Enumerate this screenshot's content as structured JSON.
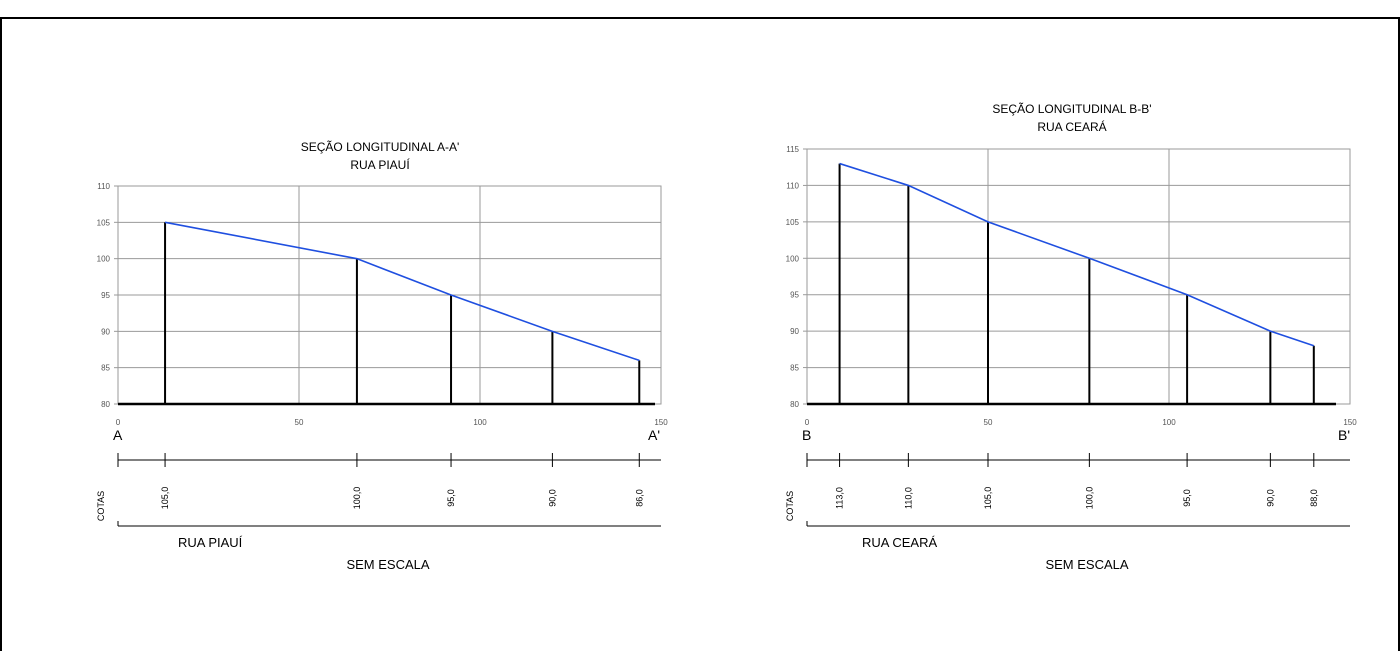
{
  "chart_data": [
    {
      "type": "line",
      "title": "SEÇÃO LONGITUDINAL  A-A'",
      "subtitle": "RUA PIAUÍ",
      "xlim": [
        0,
        150
      ],
      "ylim": [
        80,
        110
      ],
      "x_ticks": [
        "0",
        "50",
        "100",
        "150"
      ],
      "y_ticks": [
        "80",
        "85",
        "90",
        "95",
        "100",
        "105",
        "110"
      ],
      "grid": true,
      "start_label": "A",
      "end_label": "A'",
      "x": [
        13,
        66,
        92,
        120,
        144
      ],
      "values": [
        105,
        100,
        95,
        90,
        86
      ],
      "cotas_label": "COTAS",
      "cotas": [
        "105,0",
        "100,0",
        "95,0",
        "90,0",
        "86,0"
      ],
      "street_label": "RUA PIAUÍ",
      "scale_label": "SEM ESCALA",
      "line_color": "#1f4fe0"
    },
    {
      "type": "line",
      "title": "SEÇÃO LONGITUDINAL  B-B'",
      "subtitle": "RUA CEARÁ",
      "xlim": [
        0,
        150
      ],
      "ylim": [
        80,
        115
      ],
      "x_ticks": [
        "0",
        "50",
        "100",
        "150"
      ],
      "y_ticks": [
        "80",
        "85",
        "90",
        "95",
        "100",
        "105",
        "110",
        "115"
      ],
      "grid": true,
      "start_label": "B",
      "end_label": "B'",
      "x": [
        9,
        28,
        50,
        78,
        105,
        128,
        140
      ],
      "values": [
        113,
        110,
        105,
        100,
        95,
        90,
        88
      ],
      "cotas_label": "COTAS",
      "cotas": [
        "113,0",
        "110,0",
        "105,0",
        "100,0",
        "95,0",
        "90,0",
        "88,0"
      ],
      "street_label": "RUA CEARÁ",
      "scale_label": "SEM ESCALA",
      "line_color": "#1f4fe0"
    }
  ]
}
